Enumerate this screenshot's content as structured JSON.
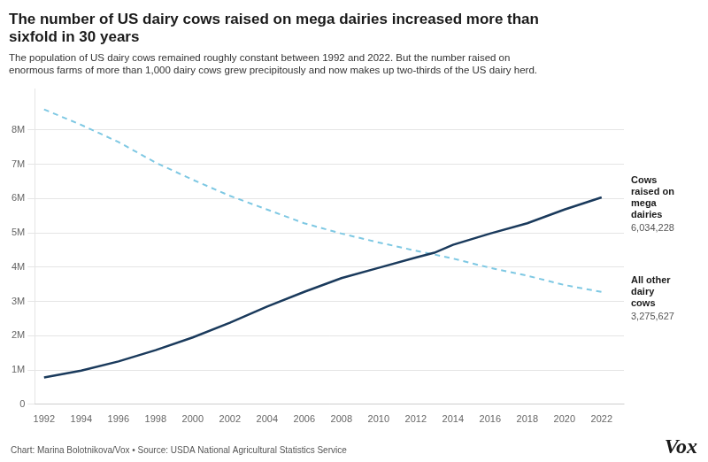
{
  "chart_data": {
    "type": "line",
    "title": "The number of US dairy cows raised on mega dairies increased more than\nsixfold in 30 years",
    "subtitle": "The population of US dairy cows remained roughly constant between 1992 and 2022. But the number raised on\nenormous farms of more than 1,000 dairy cows grew precipitously and now makes up two-thirds of the US dairy herd.",
    "annotations": [
      "Chart: Marina Bolotnikova/Vox • Source: USDA National Agricultural Statistics Service",
      "Vox"
    ],
    "x": [
      1992,
      1994,
      1996,
      1998,
      2000,
      2002,
      2004,
      2006,
      2008,
      2010,
      2012,
      2013,
      2014,
      2016,
      2018,
      2020,
      2022
    ],
    "series": [
      {
        "name": "Cows\nraised on\nmega\ndairies",
        "color": "#1a3a5c",
        "line_style": "solid",
        "values": [
          780000,
          980000,
          1250000,
          1580000,
          1950000,
          2380000,
          2850000,
          3280000,
          3680000,
          3980000,
          4280000,
          4420000,
          4650000,
          4980000,
          5280000,
          5680000,
          6034228
        ],
        "value_labels": [
          null,
          null,
          null,
          null,
          null,
          null,
          null,
          null,
          null,
          null,
          null,
          null,
          null,
          null,
          null,
          null,
          "6,034,228"
        ]
      },
      {
        "name": "All other\ndairy\ncows",
        "color": "#7ec8e3",
        "line_style": "dashed",
        "values": [
          8600000,
          8150000,
          7650000,
          7050000,
          6550000,
          6080000,
          5680000,
          5280000,
          4980000,
          4720000,
          4480000,
          4370000,
          4250000,
          3980000,
          3750000,
          3480000,
          3275627
        ],
        "value_labels": [
          null,
          null,
          null,
          null,
          null,
          null,
          null,
          null,
          null,
          null,
          null,
          null,
          null,
          null,
          null,
          null,
          "3,275,627"
        ]
      }
    ],
    "xlim": [
      1991.5,
      2023.2
    ],
    "xticks": [
      1992,
      1994,
      1996,
      1998,
      2000,
      2002,
      2004,
      2006,
      2008,
      2010,
      2012,
      2014,
      2016,
      2018,
      2020,
      2022
    ],
    "ylim": [
      0,
      9200000
    ],
    "yticks": [
      0,
      {
        "value": 1000000,
        "label": "1M"
      },
      {
        "value": 2000000,
        "label": "2M"
      },
      {
        "value": 3000000,
        "label": "3M"
      },
      {
        "value": 4000000,
        "label": "4M"
      },
      {
        "value": 5000000,
        "label": "5M"
      },
      {
        "value": 6000000,
        "label": "6M"
      },
      {
        "value": 7000000,
        "label": "7M"
      },
      {
        "value": 8000000,
        "label": "8M"
      }
    ],
    "grid": "y",
    "legend": false
  }
}
